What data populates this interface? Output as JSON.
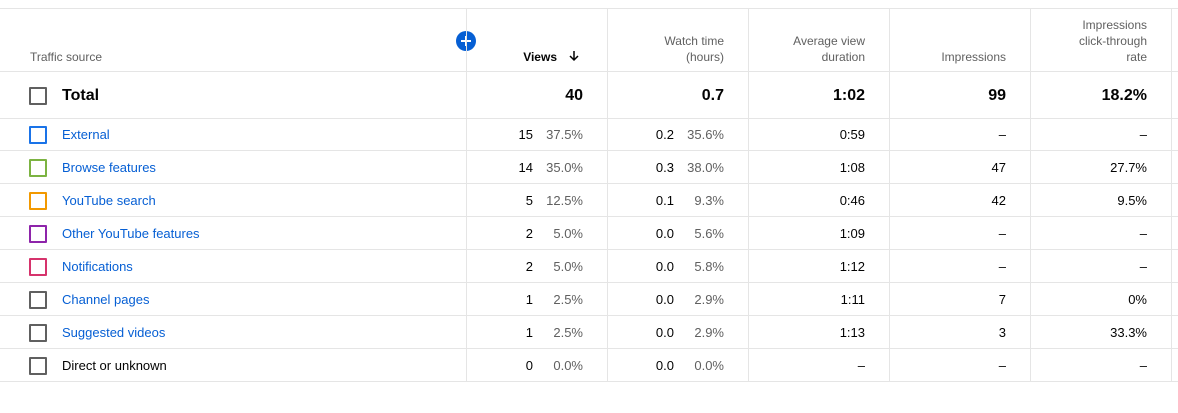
{
  "header": {
    "columns": [
      {
        "lines": [
          "Traffic source"
        ]
      },
      {
        "lines": [
          "Views"
        ]
      },
      {
        "lines": [
          "Watch time",
          "(hours)"
        ]
      },
      {
        "lines": [
          "Average view",
          "duration"
        ]
      },
      {
        "lines": [
          "Impressions"
        ]
      },
      {
        "lines": [
          "Impressions",
          "click-through",
          "rate"
        ]
      }
    ]
  },
  "total": {
    "name": "Total",
    "views": "40",
    "watch_time": "0.7",
    "avg_duration": "1:02",
    "impressions": "99",
    "ctr": "18.2%"
  },
  "rows": [
    {
      "name": "External",
      "color": "#1a73e8",
      "link": true,
      "views": "15",
      "views_pct": "37.5%",
      "watch_time": "0.2",
      "watch_pct": "35.6%",
      "avg_duration": "0:59",
      "impressions": "–",
      "ctr": "–"
    },
    {
      "name": "Browse features",
      "color": "#7cb342",
      "link": true,
      "views": "14",
      "views_pct": "35.0%",
      "watch_time": "0.3",
      "watch_pct": "38.0%",
      "avg_duration": "1:08",
      "impressions": "47",
      "ctr": "27.7%"
    },
    {
      "name": "YouTube search",
      "color": "#f29900",
      "link": true,
      "views": "5",
      "views_pct": "12.5%",
      "watch_time": "0.1",
      "watch_pct": "9.3%",
      "avg_duration": "0:46",
      "impressions": "42",
      "ctr": "9.5%"
    },
    {
      "name": "Other YouTube features",
      "color": "#8e24aa",
      "link": true,
      "views": "2",
      "views_pct": "5.0%",
      "watch_time": "0.0",
      "watch_pct": "5.6%",
      "avg_duration": "1:09",
      "impressions": "–",
      "ctr": "–"
    },
    {
      "name": "Notifications",
      "color": "#d6336c",
      "link": true,
      "views": "2",
      "views_pct": "5.0%",
      "watch_time": "0.0",
      "watch_pct": "5.8%",
      "avg_duration": "1:12",
      "impressions": "–",
      "ctr": "–"
    },
    {
      "name": "Channel pages",
      "color": "#606060",
      "link": true,
      "views": "1",
      "views_pct": "2.5%",
      "watch_time": "0.0",
      "watch_pct": "2.9%",
      "avg_duration": "1:11",
      "impressions": "7",
      "ctr": "0%"
    },
    {
      "name": "Suggested videos",
      "color": "#606060",
      "link": true,
      "views": "1",
      "views_pct": "2.5%",
      "watch_time": "0.0",
      "watch_pct": "2.9%",
      "avg_duration": "1:13",
      "impressions": "3",
      "ctr": "33.3%"
    },
    {
      "name": "Direct or unknown",
      "color": "#606060",
      "link": false,
      "views": "0",
      "views_pct": "0.0%",
      "watch_time": "0.0",
      "watch_pct": "0.0%",
      "avg_duration": "–",
      "impressions": "–",
      "ctr": "–"
    }
  ]
}
